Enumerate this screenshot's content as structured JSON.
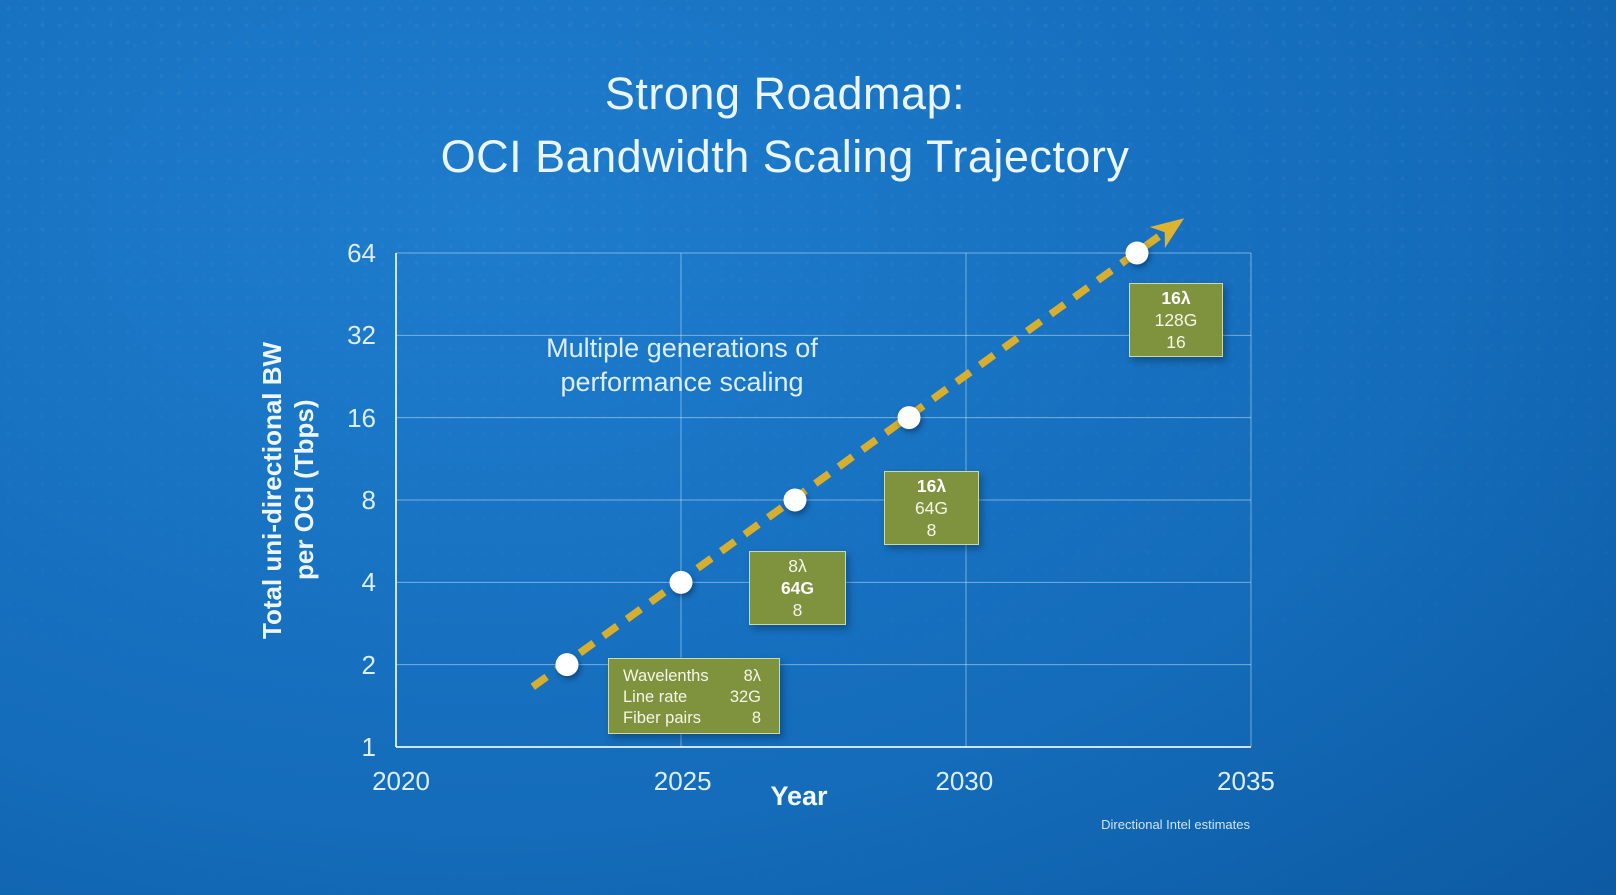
{
  "slide": {
    "title_line1": "Strong Roadmap:",
    "title_line2": "OCI Bandwidth Scaling Trajectory",
    "footnote": "Directional Intel estimates"
  },
  "chart_data": {
    "type": "line",
    "title": "Strong Roadmap: OCI Bandwidth Scaling Trajectory",
    "xlabel": "Year",
    "ylabel_line1": "Total uni-directional BW",
    "ylabel_line2": "per OCI (Tbps)",
    "x_range": [
      2020,
      2035
    ],
    "y_range": [
      1,
      64
    ],
    "y_scale": "log2",
    "xticks": [
      "2020",
      "2025",
      "2030",
      "2035"
    ],
    "yticks": [
      "64",
      "32",
      "16",
      "8",
      "4",
      "2",
      "1"
    ],
    "grid": true,
    "annotation": {
      "line1": "Multiple generations of",
      "line2": "performance scaling"
    },
    "series": [
      {
        "name": "OCI bandwidth trajectory",
        "style": "dashed-arrow",
        "color": "#d7ae2e",
        "point_color": "#ffffff",
        "points": [
          [
            2023,
            2
          ],
          [
            2025,
            4
          ],
          [
            2027,
            8
          ],
          [
            2029,
            16
          ],
          [
            2033,
            64
          ]
        ],
        "trend_start": [
          2022.4,
          1.66
        ],
        "trend_end": [
          2033.4,
          74
        ]
      }
    ],
    "callouts": [
      {
        "name": "gen1",
        "style": "table",
        "rows": [
          {
            "label": "Wavelenths",
            "value": "8λ"
          },
          {
            "label": "Line rate",
            "value": "32G"
          },
          {
            "label": "Fiber pairs",
            "value": "8"
          }
        ]
      },
      {
        "name": "gen2",
        "lines": [
          {
            "text": "8λ",
            "bold": false
          },
          {
            "text": "64G",
            "bold": true
          },
          {
            "text": "8",
            "bold": false
          }
        ]
      },
      {
        "name": "gen3",
        "lines": [
          {
            "text": "16λ",
            "bold": true
          },
          {
            "text": "64G",
            "bold": false
          },
          {
            "text": "8",
            "bold": false
          }
        ]
      },
      {
        "name": "gen4",
        "lines": [
          {
            "text": "16λ",
            "bold": true
          },
          {
            "text": "128G",
            "bold": false
          },
          {
            "text": "16",
            "bold": false
          }
        ]
      }
    ],
    "colors": {
      "background": "#1470c2",
      "trend_line": "#d7ae2e",
      "callout_fill": "#7f933f",
      "callout_border": "#ccdaa6",
      "grid": "#deeffe",
      "text": "#eaf5fd"
    }
  }
}
